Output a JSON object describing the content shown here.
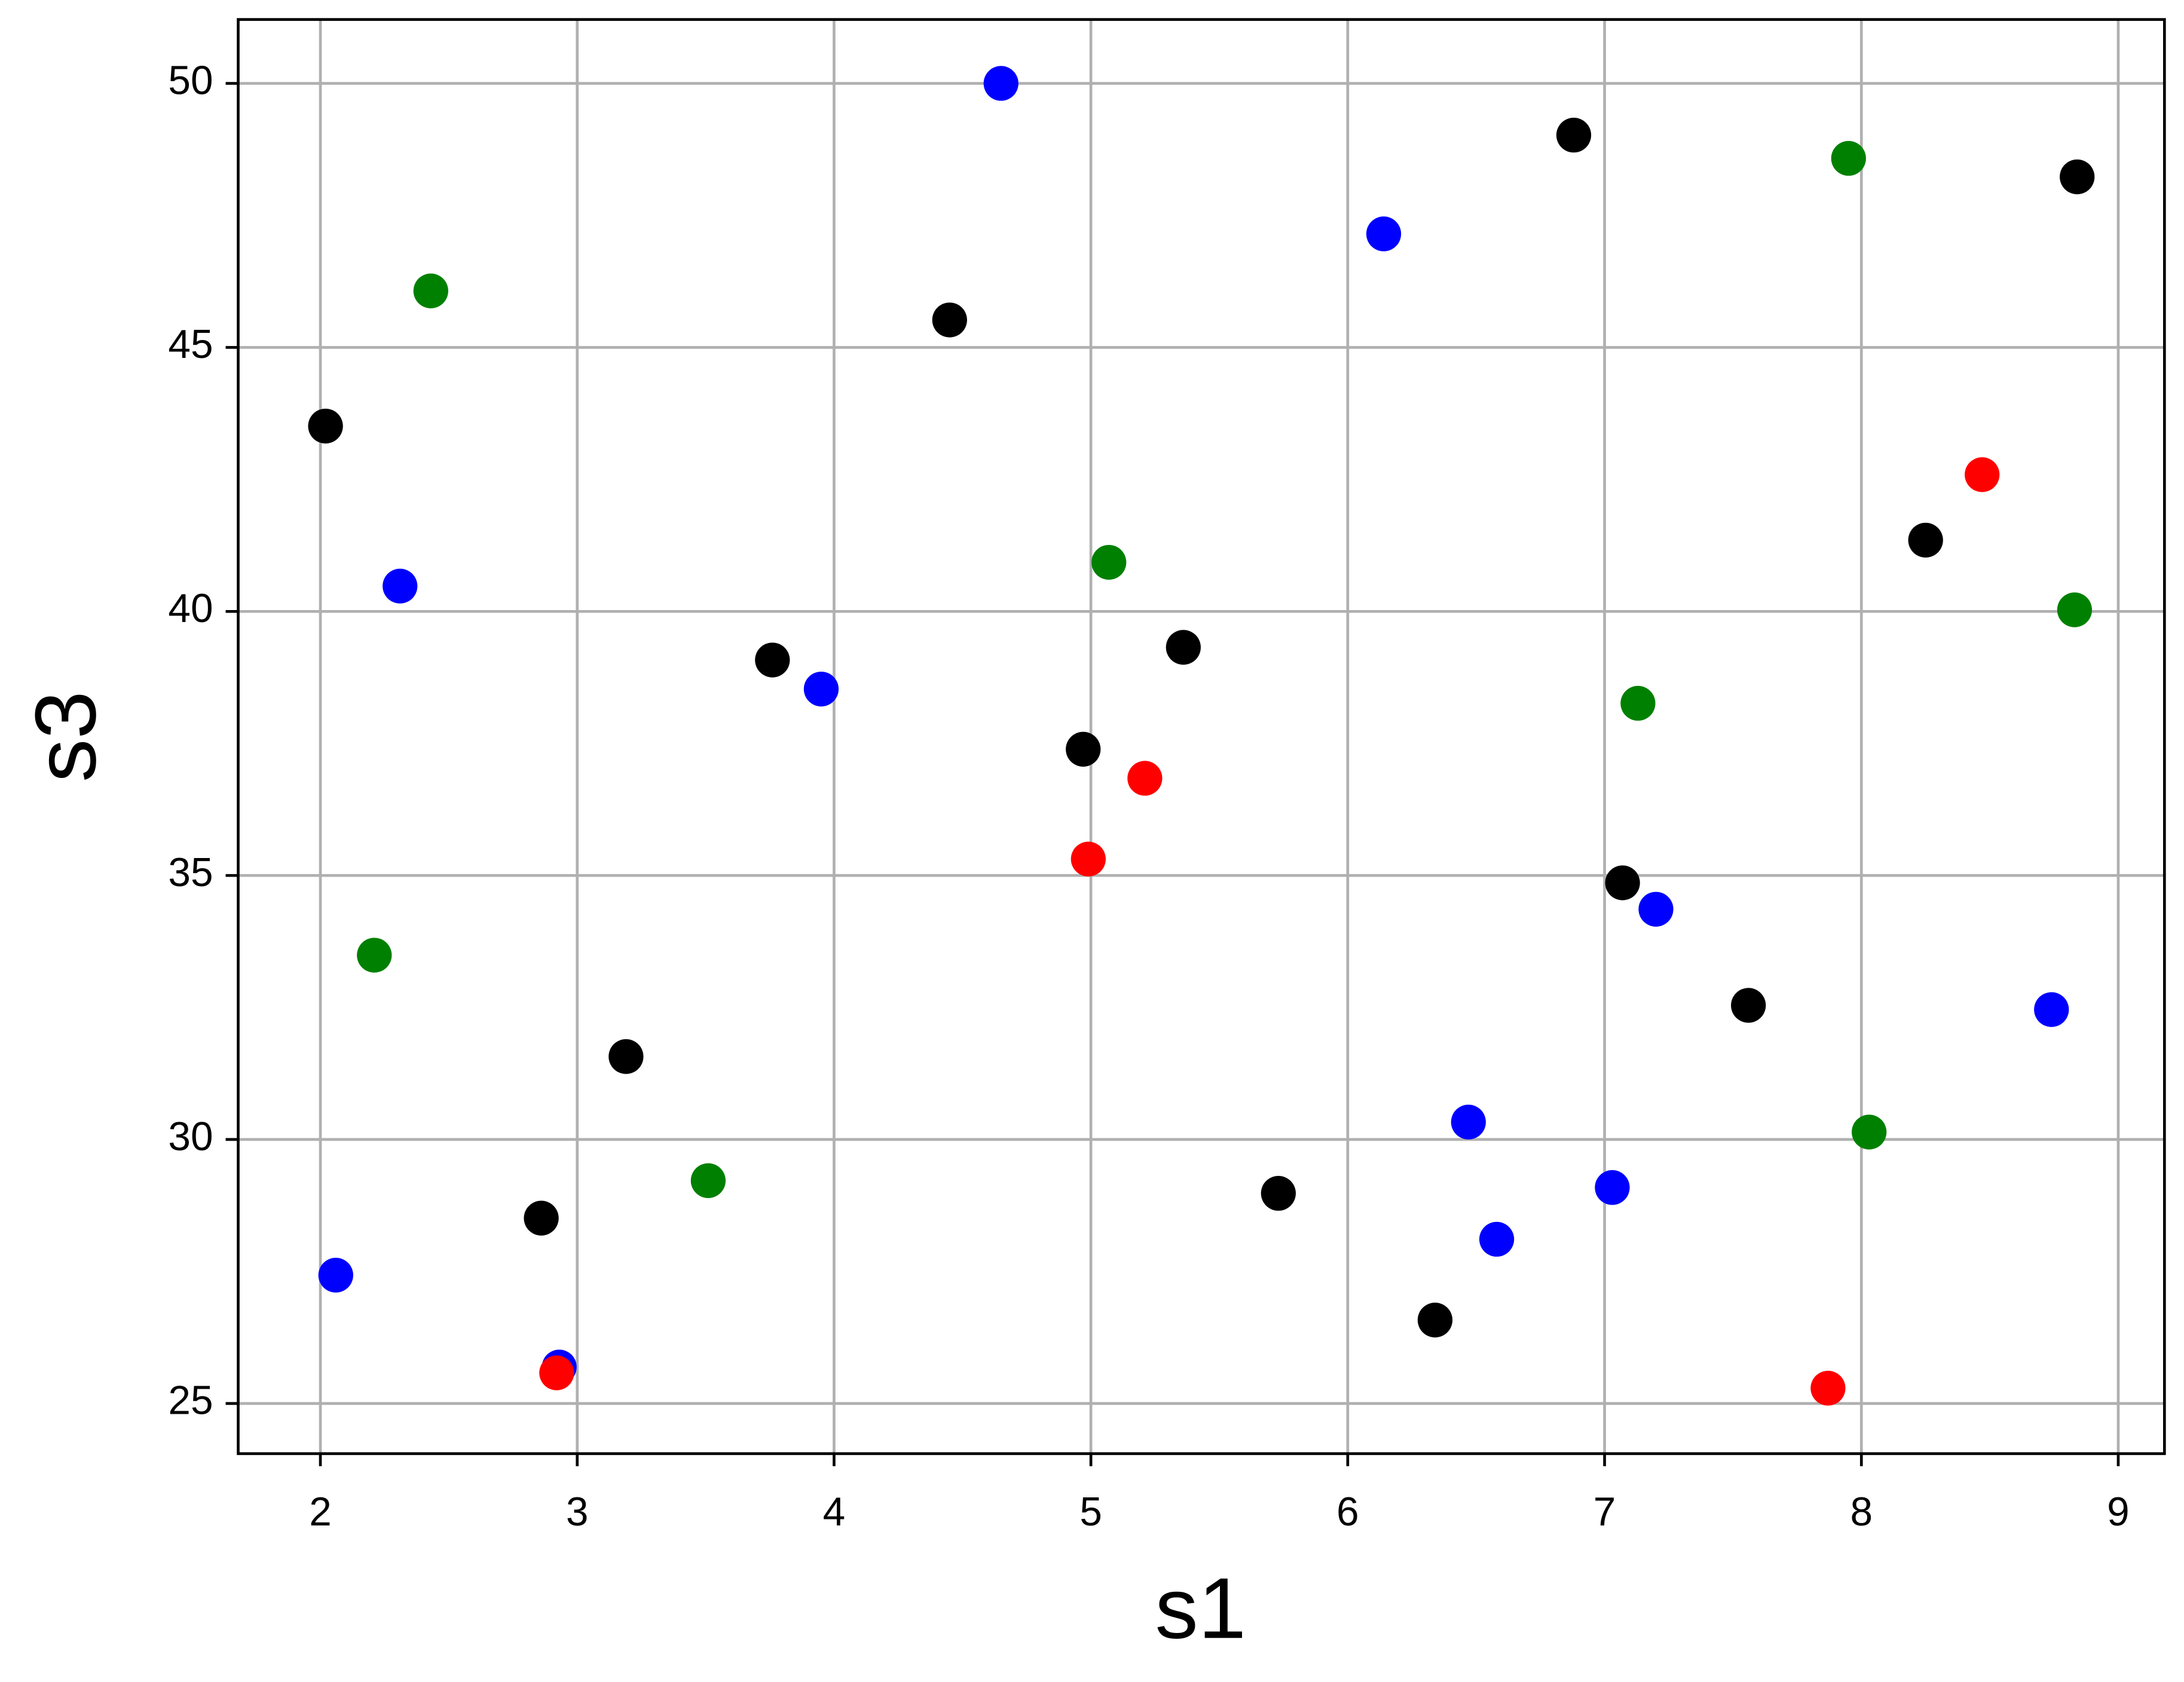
{
  "chart_data": {
    "type": "scatter",
    "x_label": "s1",
    "y_label": "s3",
    "xlim": [
      1.68,
      9.18
    ],
    "ylim": [
      24.05,
      51.21
    ],
    "xticks": [
      2,
      3,
      4,
      5,
      6,
      7,
      8,
      9
    ],
    "yticks": [
      25,
      30,
      35,
      40,
      45,
      50
    ],
    "grid": true,
    "series": [
      {
        "color": "#000000",
        "x": [
          2.02,
          4.45,
          6.88,
          8.84,
          8.25,
          3.76,
          5.36,
          4.97,
          7.07,
          7.56,
          3.19,
          2.86,
          5.73,
          6.34
        ],
        "y": [
          43.51,
          45.52,
          49.02,
          48.23,
          41.35,
          39.08,
          39.32,
          37.39,
          34.86,
          32.54,
          31.57,
          28.51,
          28.98,
          26.58
        ]
      },
      {
        "color": "#0000ff",
        "x": [
          4.65,
          6.14,
          2.31,
          3.95,
          7.2,
          8.74,
          6.47,
          7.03,
          6.58,
          2.06,
          2.93
        ],
        "y": [
          50.0,
          47.15,
          40.48,
          38.53,
          34.36,
          32.46,
          30.33,
          29.09,
          28.11,
          27.43,
          25.69
        ]
      },
      {
        "color": "#008000",
        "x": [
          2.43,
          7.95,
          5.07,
          8.83,
          7.13,
          2.21,
          3.51,
          8.03
        ],
        "y": [
          46.07,
          48.58,
          40.93,
          40.03,
          38.26,
          33.49,
          29.22,
          30.14
        ]
      },
      {
        "color": "#ff0000",
        "x": [
          8.47,
          5.21,
          4.99,
          2.92,
          7.87
        ],
        "y": [
          42.59,
          36.84,
          35.31,
          25.58,
          25.29
        ]
      }
    ]
  }
}
